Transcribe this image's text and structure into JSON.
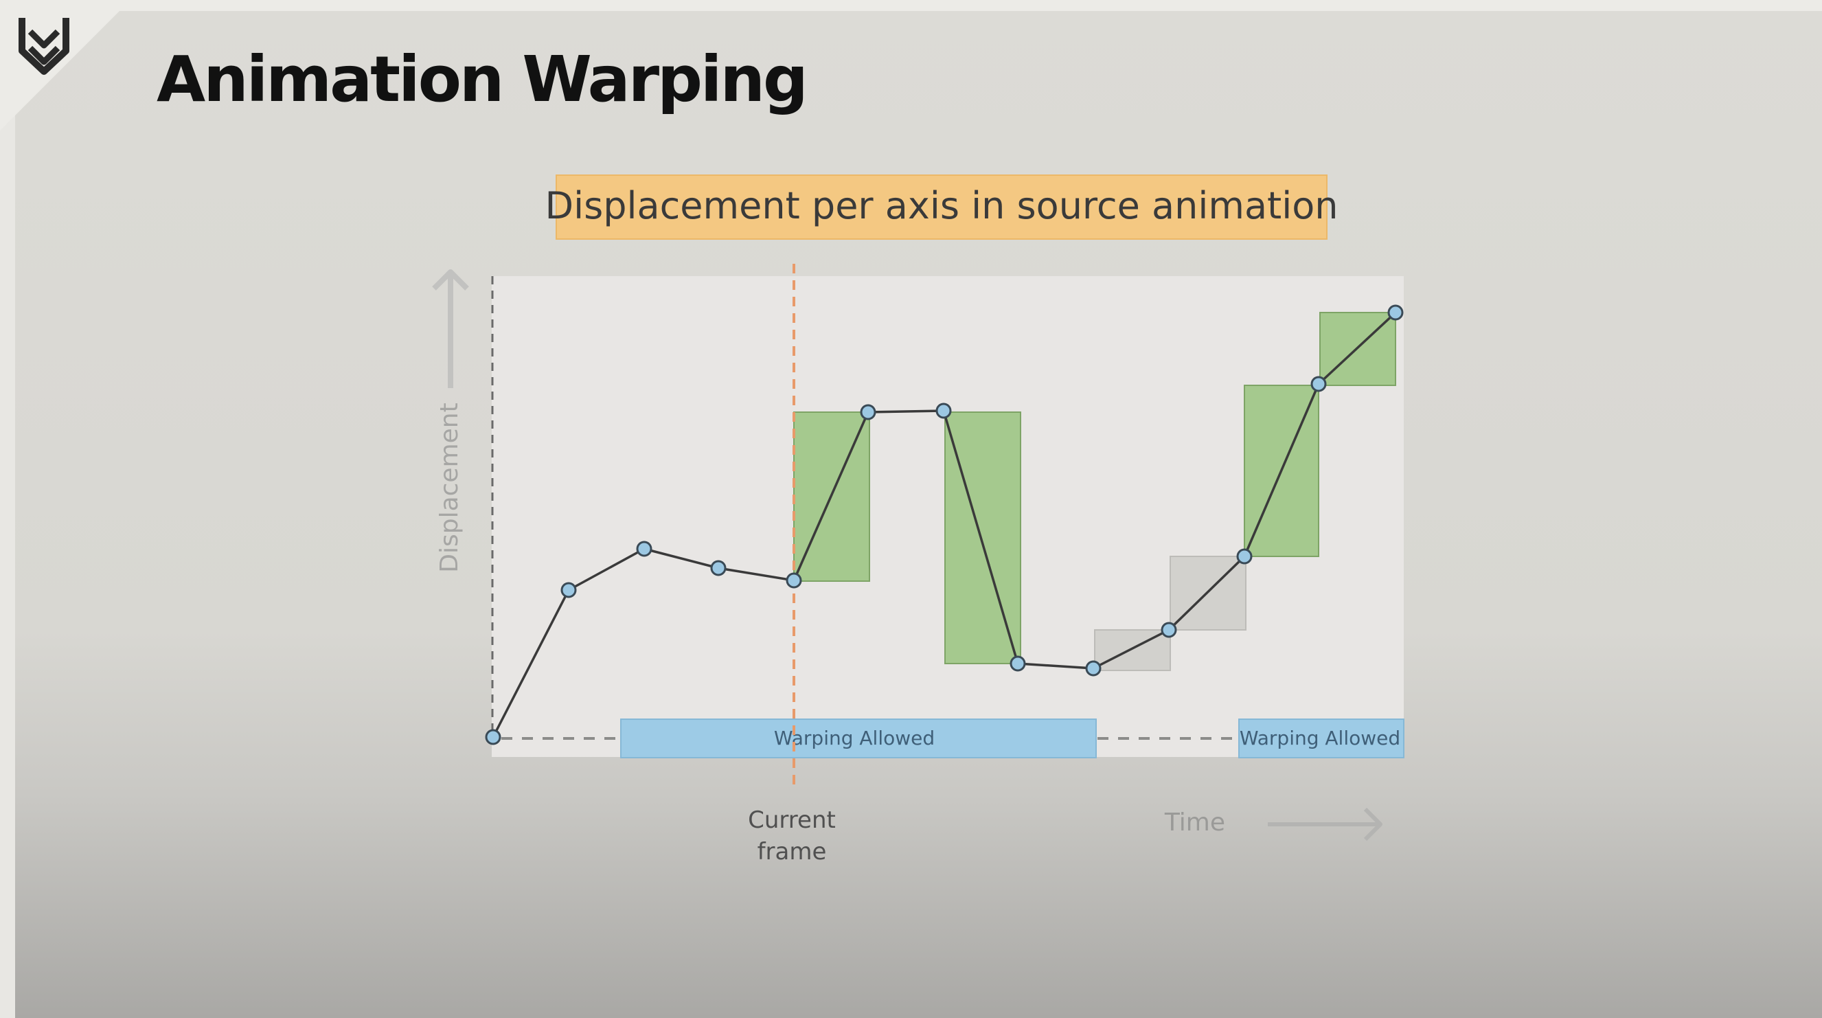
{
  "slide": {
    "title": "Animation Warping",
    "logo_icon": "chevron-shield-icon"
  },
  "diagram": {
    "caption": "Displacement per axis in source animation",
    "y_axis_label": "Displacement",
    "x_axis_label": "Time",
    "current_frame_label_line1": "Current",
    "current_frame_label_line2": "frame",
    "warp_region_label_1": "Warping Allowed",
    "warp_region_label_2": "Warping Allowed",
    "colors": {
      "plot_bg": "#e8e6e4",
      "allowed_bar": "#9dcbe6",
      "green_box": "#a5c98e",
      "gray_box": "#d2d1cd",
      "caption_bg": "#f4c882",
      "current_frame_line": "#e89a6a",
      "node_fill": "#9cc8e3"
    },
    "icons": [
      "up-arrow-icon",
      "right-arrow-icon"
    ]
  }
}
